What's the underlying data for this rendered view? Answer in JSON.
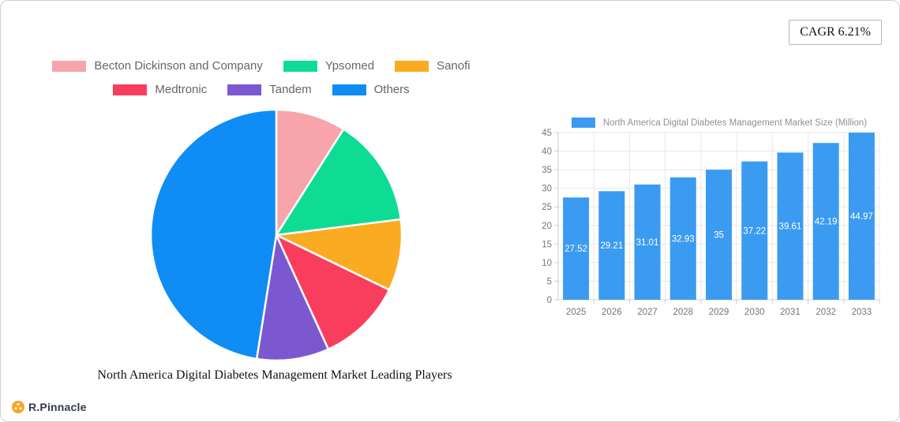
{
  "badge": {
    "cagr_label": "CAGR 6.21%"
  },
  "brand": {
    "name": "R.Pinnacle",
    "icon": "pinnacle-flower-icon",
    "icon_color": "#f5a623"
  },
  "chart_data": [
    {
      "type": "pie",
      "title": "North America Digital Diabetes Management Market Leading Players",
      "labels": [
        "Becton Dickinson and Company",
        "Ypsomed",
        "Sanofi",
        "Medtronic",
        "Tandem",
        "Others"
      ],
      "values_pct_est": [
        9,
        14,
        9.2,
        11,
        9.3,
        47.5
      ],
      "colors": [
        "#f7a4ab",
        "#0edc95",
        "#fbab21",
        "#f93e5d",
        "#7c58d0",
        "#0f8df5"
      ],
      "start": "top",
      "direction": "clockwise",
      "legend_position": "top",
      "legend_rows": [
        [
          0,
          1,
          2
        ],
        [
          3,
          4,
          5
        ]
      ]
    },
    {
      "type": "bar",
      "legend": "North America Digital Diabetes Management Market Size (Million)",
      "bar_color": "#3b9bf1",
      "value_label_color": "#ffffff",
      "categories": [
        "2025",
        "2026",
        "2027",
        "2028",
        "2029",
        "2030",
        "2031",
        "2032",
        "2033"
      ],
      "values": [
        27.52,
        29.21,
        31.01,
        32.93,
        35,
        37.22,
        39.61,
        42.19,
        44.97
      ],
      "value_labels": [
        "27.52",
        "29.21",
        "31.01",
        "32.93",
        "35",
        "37.22",
        "39.61",
        "42.19",
        "44.97"
      ],
      "ylim": [
        0,
        45
      ],
      "ytick_step": 5,
      "yticks": [
        0,
        5,
        10,
        15,
        20,
        25,
        30,
        35,
        40,
        45
      ],
      "grid": true,
      "legend_position": "top"
    }
  ]
}
